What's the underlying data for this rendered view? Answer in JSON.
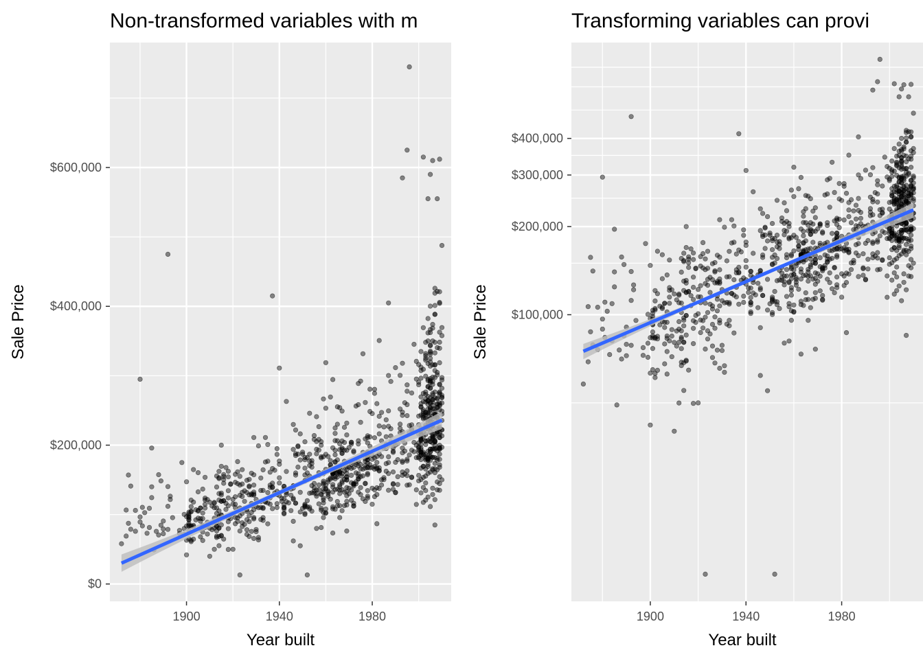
{
  "chart_data": [
    {
      "type": "scatter",
      "title": "Non-transformed variables with m",
      "xlabel": "Year built",
      "ylabel": "Sale Price",
      "x_scale": "linear",
      "y_scale": "linear",
      "xlim": [
        1867,
        2014
      ],
      "ylim": [
        -25000,
        780000
      ],
      "x_ticks": [
        1900,
        1940,
        1980
      ],
      "x_tick_labels": [
        "1900",
        "1940",
        "1980"
      ],
      "y_ticks": [
        0,
        200000,
        400000,
        600000
      ],
      "y_tick_labels": [
        "$0",
        "$200,000",
        "$400,000",
        "$600,000"
      ],
      "grid": true,
      "series": [
        {
          "kind": "points",
          "color": "#000000",
          "opacity": 0.45
        },
        {
          "kind": "linear-fit",
          "color": "#3366FF",
          "band_color": "#bdbdbd",
          "x": [
            1872,
            2010
          ],
          "y": [
            30000,
            236000
          ]
        }
      ]
    },
    {
      "type": "scatter",
      "title": "Transforming variables can provi",
      "xlabel": "Year built",
      "ylabel": "Sale Price",
      "x_scale": "linear",
      "y_scale": "log10",
      "xlim": [
        1867,
        2014
      ],
      "ylim": [
        10500,
        850000
      ],
      "x_ticks": [
        1900,
        1940,
        1980
      ],
      "x_tick_labels": [
        "1900",
        "1940",
        "1980"
      ],
      "y_ticks": [
        100000,
        200000,
        300000,
        400000
      ],
      "y_tick_labels": [
        "$100,000",
        "$200,000",
        "$300,000",
        "$400,000"
      ],
      "grid": true,
      "series": [
        {
          "kind": "points",
          "color": "#000000",
          "opacity": 0.45
        },
        {
          "kind": "linear-fit",
          "color": "#3366FF",
          "band_color": "#bdbdbd",
          "x": [
            1872,
            2010
          ],
          "y": [
            75000,
            228000
          ]
        }
      ]
    }
  ]
}
